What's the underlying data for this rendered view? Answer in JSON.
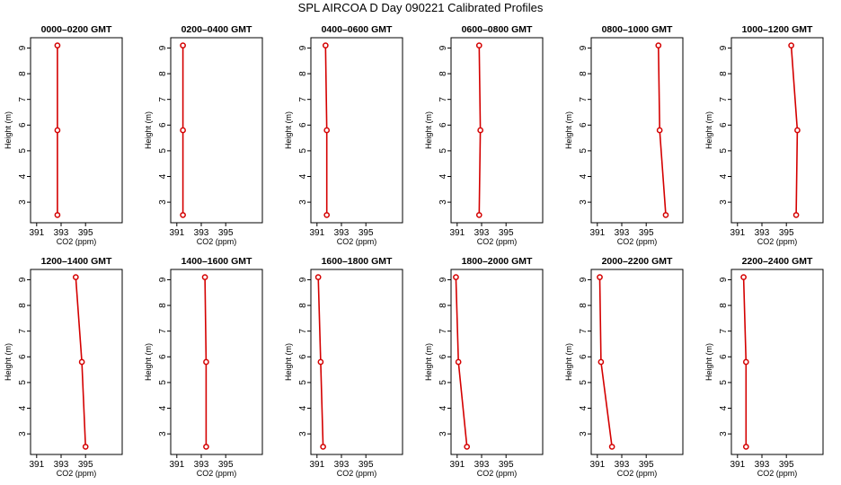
{
  "figure": {
    "title": "SPL AIRCOA D  Day 090221  Calibrated Profiles"
  },
  "style": {
    "line_color": "#d40000",
    "point_color": "#d40000",
    "axis_color": "#000000"
  },
  "chart_data": [
    {
      "type": "line",
      "title": "0000–0200 GMT",
      "xlabel": "CO2 (ppm)",
      "ylabel": "Height (m)",
      "xlim": [
        390.5,
        398
      ],
      "ylim": [
        2.2,
        9.4
      ],
      "xticks": [
        391,
        393,
        395
      ],
      "yticks": [
        3,
        4,
        5,
        6,
        7,
        8,
        9
      ],
      "grid": false,
      "series": [
        {
          "x": [
            392.7,
            392.7,
            392.7
          ],
          "y": [
            2.5,
            5.8,
            9.1
          ]
        }
      ]
    },
    {
      "type": "line",
      "title": "0200–0400 GMT",
      "xlabel": "CO2 (ppm)",
      "ylabel": "Height (m)",
      "xlim": [
        390.5,
        398
      ],
      "ylim": [
        2.2,
        9.4
      ],
      "xticks": [
        391,
        393,
        395
      ],
      "yticks": [
        3,
        4,
        5,
        6,
        7,
        8,
        9
      ],
      "grid": false,
      "series": [
        {
          "x": [
            391.5,
            391.5,
            391.5
          ],
          "y": [
            2.5,
            5.8,
            9.1
          ]
        }
      ]
    },
    {
      "type": "line",
      "title": "0400–0600 GMT",
      "xlabel": "CO2 (ppm)",
      "ylabel": "Height (m)",
      "xlim": [
        390.5,
        398
      ],
      "ylim": [
        2.2,
        9.4
      ],
      "xticks": [
        391,
        393,
        395
      ],
      "yticks": [
        3,
        4,
        5,
        6,
        7,
        8,
        9
      ],
      "grid": false,
      "series": [
        {
          "x": [
            391.8,
            391.8,
            391.7
          ],
          "y": [
            2.5,
            5.8,
            9.1
          ]
        }
      ]
    },
    {
      "type": "line",
      "title": "0600–0800 GMT",
      "xlabel": "CO2 (ppm)",
      "ylabel": "Height (m)",
      "xlim": [
        390.5,
        398
      ],
      "ylim": [
        2.2,
        9.4
      ],
      "xticks": [
        391,
        393,
        395
      ],
      "yticks": [
        3,
        4,
        5,
        6,
        7,
        8,
        9
      ],
      "grid": false,
      "series": [
        {
          "x": [
            392.8,
            392.9,
            392.8
          ],
          "y": [
            2.5,
            5.8,
            9.1
          ]
        }
      ]
    },
    {
      "type": "line",
      "title": "0800–1000 GMT",
      "xlabel": "CO2 (ppm)",
      "ylabel": "Height (m)",
      "xlim": [
        390.5,
        398
      ],
      "ylim": [
        2.2,
        9.4
      ],
      "xticks": [
        391,
        393,
        395
      ],
      "yticks": [
        3,
        4,
        5,
        6,
        7,
        8,
        9
      ],
      "grid": false,
      "series": [
        {
          "x": [
            396.6,
            396.1,
            396.0
          ],
          "y": [
            2.5,
            5.8,
            9.1
          ]
        }
      ]
    },
    {
      "type": "line",
      "title": "1000–1200 GMT",
      "xlabel": "CO2 (ppm)",
      "ylabel": "Height (m)",
      "xlim": [
        390.5,
        398
      ],
      "ylim": [
        2.2,
        9.4
      ],
      "xticks": [
        391,
        393,
        395
      ],
      "yticks": [
        3,
        4,
        5,
        6,
        7,
        8,
        9
      ],
      "grid": false,
      "series": [
        {
          "x": [
            395.8,
            395.9,
            395.4
          ],
          "y": [
            2.5,
            5.8,
            9.1
          ]
        }
      ]
    },
    {
      "type": "line",
      "title": "1200–1400 GMT",
      "xlabel": "CO2 (ppm)",
      "ylabel": "Height (m)",
      "xlim": [
        390.5,
        398
      ],
      "ylim": [
        2.2,
        9.4
      ],
      "xticks": [
        391,
        393,
        395
      ],
      "yticks": [
        3,
        4,
        5,
        6,
        7,
        8,
        9
      ],
      "grid": false,
      "series": [
        {
          "x": [
            395.0,
            394.7,
            394.2
          ],
          "y": [
            2.5,
            5.8,
            9.1
          ]
        }
      ]
    },
    {
      "type": "line",
      "title": "1400–1600 GMT",
      "xlabel": "CO2 (ppm)",
      "ylabel": "Height (m)",
      "xlim": [
        390.5,
        398
      ],
      "ylim": [
        2.2,
        9.4
      ],
      "xticks": [
        391,
        393,
        395
      ],
      "yticks": [
        3,
        4,
        5,
        6,
        7,
        8,
        9
      ],
      "grid": false,
      "series": [
        {
          "x": [
            393.4,
            393.4,
            393.3
          ],
          "y": [
            2.5,
            5.8,
            9.1
          ]
        }
      ]
    },
    {
      "type": "line",
      "title": "1600–1800 GMT",
      "xlabel": "CO2 (ppm)",
      "ylabel": "Height (m)",
      "xlim": [
        390.5,
        398
      ],
      "ylim": [
        2.2,
        9.4
      ],
      "xticks": [
        391,
        393,
        395
      ],
      "yticks": [
        3,
        4,
        5,
        6,
        7,
        8,
        9
      ],
      "grid": false,
      "series": [
        {
          "x": [
            391.5,
            391.3,
            391.1
          ],
          "y": [
            2.5,
            5.8,
            9.1
          ]
        }
      ]
    },
    {
      "type": "line",
      "title": "1800–2000 GMT",
      "xlabel": "CO2 (ppm)",
      "ylabel": "Height (m)",
      "xlim": [
        390.5,
        398
      ],
      "ylim": [
        2.2,
        9.4
      ],
      "xticks": [
        391,
        393,
        395
      ],
      "yticks": [
        3,
        4,
        5,
        6,
        7,
        8,
        9
      ],
      "grid": false,
      "series": [
        {
          "x": [
            391.8,
            391.1,
            390.9
          ],
          "y": [
            2.5,
            5.8,
            9.1
          ]
        }
      ]
    },
    {
      "type": "line",
      "title": "2000–2200 GMT",
      "xlabel": "CO2 (ppm)",
      "ylabel": "Height (m)",
      "xlim": [
        390.5,
        398
      ],
      "ylim": [
        2.2,
        9.4
      ],
      "xticks": [
        391,
        393,
        395
      ],
      "yticks": [
        3,
        4,
        5,
        6,
        7,
        8,
        9
      ],
      "grid": false,
      "series": [
        {
          "x": [
            392.2,
            391.3,
            391.2
          ],
          "y": [
            2.5,
            5.8,
            9.1
          ]
        }
      ]
    },
    {
      "type": "line",
      "title": "2200–2400 GMT",
      "xlabel": "CO2 (ppm)",
      "ylabel": "Height (m)",
      "xlim": [
        390.5,
        398
      ],
      "ylim": [
        2.2,
        9.4
      ],
      "xticks": [
        391,
        393,
        395
      ],
      "yticks": [
        3,
        4,
        5,
        6,
        7,
        8,
        9
      ],
      "grid": false,
      "series": [
        {
          "x": [
            391.7,
            391.7,
            391.5
          ],
          "y": [
            2.5,
            5.8,
            9.1
          ]
        }
      ]
    }
  ]
}
